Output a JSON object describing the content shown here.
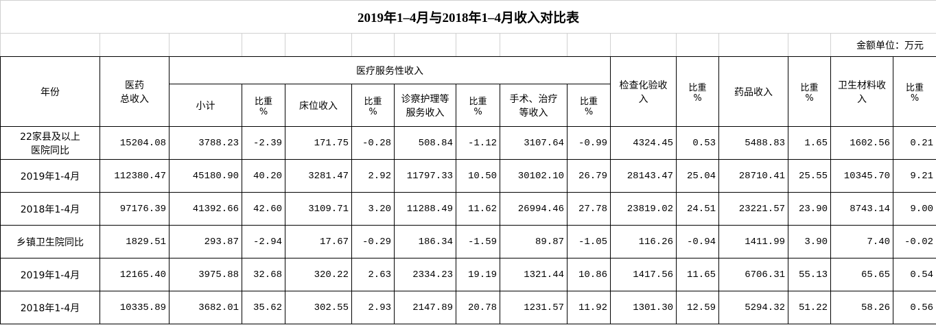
{
  "title": "2019年1–4月与2018年1–4月收入对比表",
  "unit": "金额单位：万元",
  "headers": [
    "年份",
    "医药\n总收入",
    "医疗服务性收入",
    "检查化验收\n入",
    "比重\n%",
    "药品收入",
    "比重\n%",
    "卫生材料收\n入",
    "比重\n%"
  ],
  "subheaders": [
    "小计",
    "比重\n%",
    "床位收入",
    "比重\n%",
    "诊察护理等\n服务收入",
    "比重\n%",
    "手术、治疗\n等收入",
    "比重\n%"
  ],
  "table": {
    "rows": [
      [
        "22家县及以上\n医院同比",
        "15204.08",
        "3788.23",
        "-2.39",
        "171.75",
        "-0.28",
        "508.84",
        "-1.12",
        "3107.64",
        "-0.99",
        "4324.45",
        "0.53",
        "5488.83",
        "1.65",
        "1602.56",
        "0.21"
      ],
      [
        "2019年1-4月",
        "112380.47",
        "45180.90",
        "40.20",
        "3281.47",
        "2.92",
        "11797.33",
        "10.50",
        "30102.10",
        "26.79",
        "28143.47",
        "25.04",
        "28710.41",
        "25.55",
        "10345.70",
        "9.21"
      ],
      [
        "2018年1-4月",
        "97176.39",
        "41392.66",
        "42.60",
        "3109.71",
        "3.20",
        "11288.49",
        "11.62",
        "26994.46",
        "27.78",
        "23819.02",
        "24.51",
        "23221.57",
        "23.90",
        "8743.14",
        "9.00"
      ],
      [
        "乡镇卫生院同比",
        "1829.51",
        "293.87",
        "-2.94",
        "17.67",
        "-0.29",
        "186.34",
        "-1.59",
        "89.87",
        "-1.05",
        "116.26",
        "-0.94",
        "1411.99",
        "3.90",
        "7.40",
        "-0.02"
      ],
      [
        "2019年1-4月",
        "12165.40",
        "3975.88",
        "32.68",
        "320.22",
        "2.63",
        "2334.23",
        "19.19",
        "1321.44",
        "10.86",
        "1417.56",
        "11.65",
        "6706.31",
        "55.13",
        "65.65",
        "0.54"
      ],
      [
        "2018年1-4月",
        "10335.89",
        "3682.01",
        "35.62",
        "302.55",
        "2.93",
        "2147.89",
        "20.78",
        "1231.57",
        "11.92",
        "1301.30",
        "12.59",
        "5294.32",
        "51.22",
        "58.26",
        "0.56"
      ]
    ]
  }
}
